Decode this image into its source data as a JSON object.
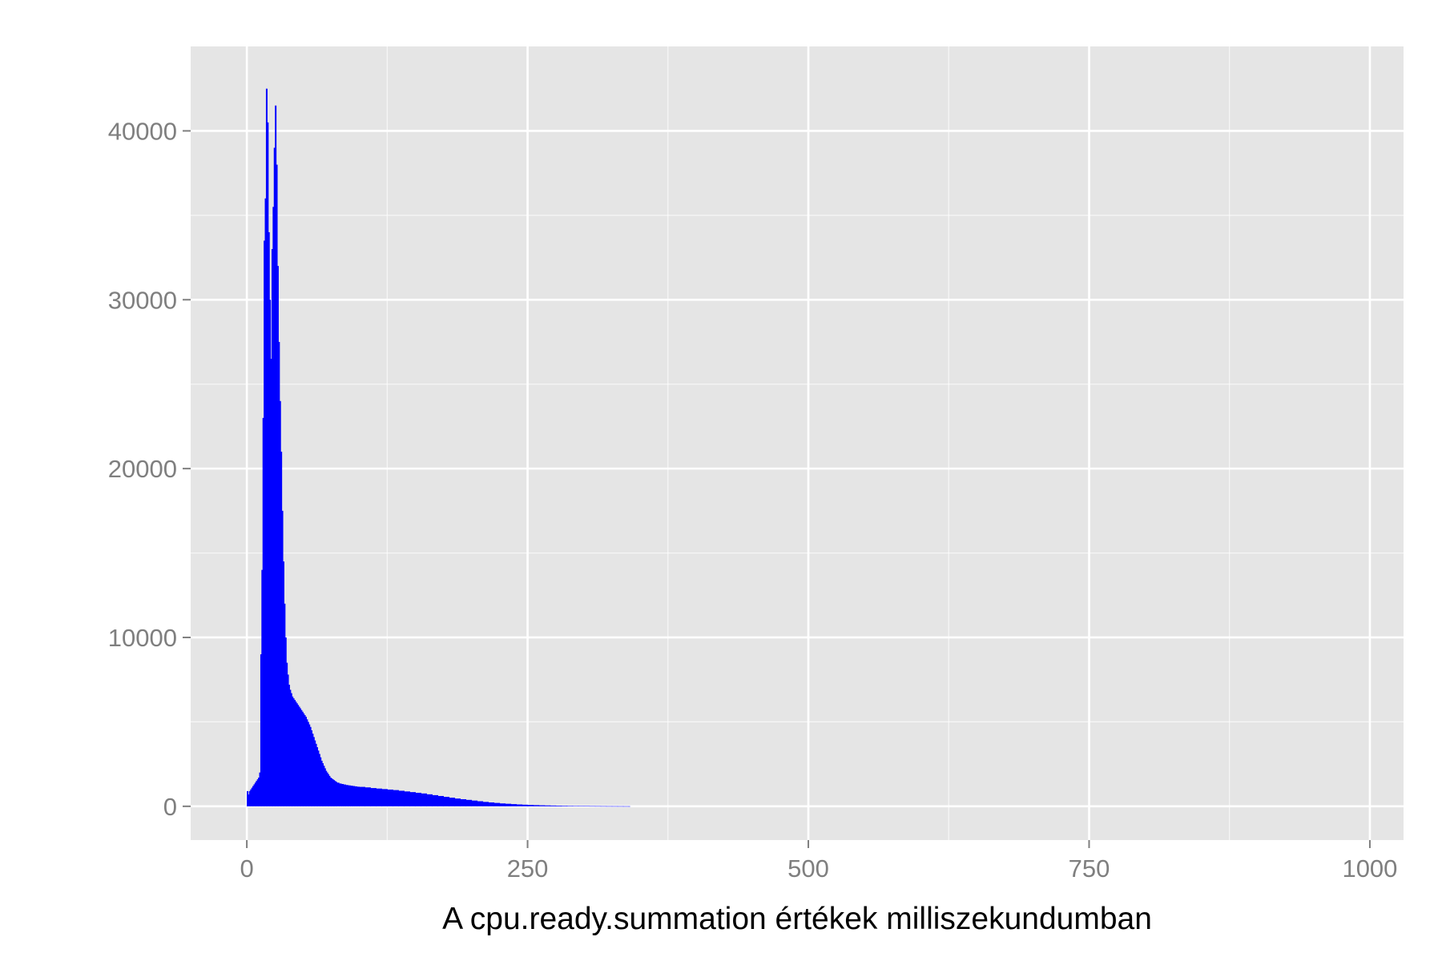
{
  "chart_data": {
    "type": "bar",
    "title": "",
    "xlabel": "A cpu.ready.summation értékek milliszekundumban",
    "ylabel": "",
    "xlim": [
      -50,
      1030
    ],
    "ylim": [
      -2000,
      45000
    ],
    "x_ticks": [
      0,
      250,
      500,
      750,
      1000
    ],
    "x_tick_labels": [
      "0",
      "250",
      "500",
      "750",
      "1000"
    ],
    "y_ticks": [
      0,
      10000,
      20000,
      30000,
      40000
    ],
    "y_tick_labels": [
      "0",
      "10000",
      "20000",
      "30000",
      "40000"
    ],
    "grid": true,
    "bar_color": "#0000ff",
    "panel_color": "#e5e5e5",
    "grid_color": "#ffffff",
    "bin_width": 1,
    "bins": [
      [
        0,
        900
      ],
      [
        1,
        700
      ],
      [
        2,
        900
      ],
      [
        3,
        1000
      ],
      [
        4,
        1100
      ],
      [
        5,
        1200
      ],
      [
        6,
        1300
      ],
      [
        7,
        1400
      ],
      [
        8,
        1500
      ],
      [
        9,
        1600
      ],
      [
        10,
        1700
      ],
      [
        11,
        2000
      ],
      [
        12,
        9000
      ],
      [
        13,
        14000
      ],
      [
        14,
        23000
      ],
      [
        15,
        33500
      ],
      [
        16,
        36000
      ],
      [
        17,
        42500
      ],
      [
        18,
        40500
      ],
      [
        19,
        34000
      ],
      [
        20,
        30000
      ],
      [
        21,
        26500
      ],
      [
        22,
        33000
      ],
      [
        23,
        35500
      ],
      [
        24,
        39000
      ],
      [
        25,
        41500
      ],
      [
        26,
        38000
      ],
      [
        27,
        32000
      ],
      [
        28,
        27500
      ],
      [
        29,
        24000
      ],
      [
        30,
        21000
      ],
      [
        31,
        17500
      ],
      [
        32,
        14500
      ],
      [
        33,
        12000
      ],
      [
        34,
        10000
      ],
      [
        35,
        8500
      ],
      [
        36,
        7800
      ],
      [
        37,
        7200
      ],
      [
        38,
        6900
      ],
      [
        39,
        6700
      ],
      [
        40,
        6500
      ],
      [
        41,
        6400
      ],
      [
        42,
        6300
      ],
      [
        43,
        6200
      ],
      [
        44,
        6100
      ],
      [
        45,
        6000
      ],
      [
        46,
        5900
      ],
      [
        47,
        5800
      ],
      [
        48,
        5700
      ],
      [
        49,
        5600
      ],
      [
        50,
        5500
      ],
      [
        51,
        5400
      ],
      [
        52,
        5300
      ],
      [
        53,
        5150
      ],
      [
        54,
        5000
      ],
      [
        55,
        4850
      ],
      [
        56,
        4700
      ],
      [
        57,
        4500
      ],
      [
        58,
        4300
      ],
      [
        59,
        4100
      ],
      [
        60,
        3900
      ],
      [
        61,
        3700
      ],
      [
        62,
        3500
      ],
      [
        63,
        3300
      ],
      [
        64,
        3100
      ],
      [
        65,
        2900
      ],
      [
        66,
        2700
      ],
      [
        67,
        2550
      ],
      [
        68,
        2400
      ],
      [
        69,
        2250
      ],
      [
        70,
        2100
      ],
      [
        71,
        2000
      ],
      [
        72,
        1900
      ],
      [
        73,
        1800
      ],
      [
        74,
        1700
      ],
      [
        75,
        1650
      ],
      [
        76,
        1600
      ],
      [
        77,
        1550
      ],
      [
        78,
        1500
      ],
      [
        79,
        1450
      ],
      [
        80,
        1400
      ],
      [
        82,
        1350
      ],
      [
        84,
        1320
      ],
      [
        86,
        1290
      ],
      [
        88,
        1260
      ],
      [
        90,
        1240
      ],
      [
        92,
        1220
      ],
      [
        94,
        1200
      ],
      [
        96,
        1180
      ],
      [
        98,
        1160
      ],
      [
        100,
        1150
      ],
      [
        105,
        1120
      ],
      [
        110,
        1080
      ],
      [
        115,
        1050
      ],
      [
        120,
        1020
      ],
      [
        125,
        990
      ],
      [
        130,
        960
      ],
      [
        135,
        920
      ],
      [
        140,
        880
      ],
      [
        145,
        840
      ],
      [
        150,
        800
      ],
      [
        155,
        760
      ],
      [
        160,
        710
      ],
      [
        165,
        660
      ],
      [
        170,
        610
      ],
      [
        175,
        560
      ],
      [
        180,
        510
      ],
      [
        185,
        460
      ],
      [
        190,
        420
      ],
      [
        195,
        380
      ],
      [
        200,
        340
      ],
      [
        205,
        300
      ],
      [
        210,
        260
      ],
      [
        215,
        230
      ],
      [
        220,
        200
      ],
      [
        225,
        170
      ],
      [
        230,
        150
      ],
      [
        235,
        130
      ],
      [
        240,
        110
      ],
      [
        245,
        95
      ],
      [
        250,
        80
      ],
      [
        255,
        70
      ],
      [
        260,
        60
      ],
      [
        265,
        52
      ],
      [
        270,
        45
      ],
      [
        275,
        38
      ],
      [
        280,
        32
      ],
      [
        285,
        27
      ],
      [
        290,
        23
      ],
      [
        295,
        19
      ],
      [
        300,
        16
      ],
      [
        305,
        13
      ],
      [
        310,
        11
      ],
      [
        315,
        9
      ],
      [
        320,
        7
      ],
      [
        325,
        6
      ],
      [
        330,
        5
      ],
      [
        335,
        4
      ],
      [
        340,
        3
      ]
    ]
  }
}
